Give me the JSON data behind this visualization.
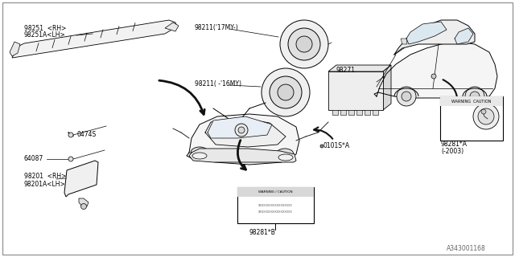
{
  "bg_color": "#ffffff",
  "border_color": "#cccccc",
  "line_color": "#000000",
  "text_color": "#000000",
  "diagram_id": "A343001168",
  "fs": 5.5,
  "parts": {
    "98251_RH": "98251  <RH>",
    "98251A_LH": "98251A<LH>",
    "98211_17MY": "98211('17MY-)",
    "98211_16MY": "98211( -'16MY)",
    "98271": "98271",
    "0474S": "0474S",
    "64087": "64087",
    "98201_RH": "98201  <RH>",
    "98201A_LH": "98201A<LH>",
    "0101S_A": "0101S*A",
    "98281_B": "98281*B",
    "98281_A": "98281*A\n(-2003)"
  }
}
